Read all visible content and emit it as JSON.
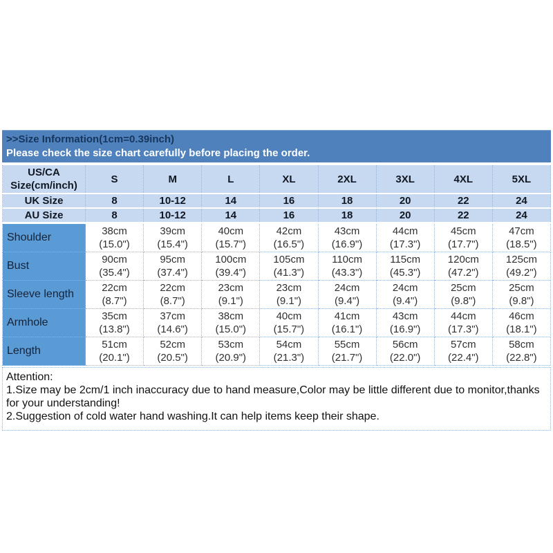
{
  "header": {
    "title": ">>Size Information(1cm=0.39inch)",
    "subtitle": "Please check the size chart carefully before placing the order."
  },
  "colors": {
    "band_bg": "#4f81bd",
    "title_text": "#17365d",
    "subtitle_text": "#ffffff",
    "header_row_bg": "#c6d9f1",
    "label_col_bg": "#5b9bd5",
    "grid_border": "#95b3d7"
  },
  "size_table": {
    "corner_header": [
      "US/CA",
      "Size(cm/inch)"
    ],
    "size_labels": [
      "S",
      "M",
      "L",
      "XL",
      "2XL",
      "3XL",
      "4XL",
      "5XL"
    ],
    "uk_row": {
      "label": "UK Size",
      "values": [
        "8",
        "10-12",
        "14",
        "16",
        "18",
        "20",
        "22",
        "24"
      ]
    },
    "au_row": {
      "label": "AU Size",
      "values": [
        "8",
        "10-12",
        "14",
        "16",
        "18",
        "20",
        "22",
        "24"
      ]
    },
    "measurements": [
      {
        "label": "Shoulder",
        "cm": [
          "38cm",
          "39cm",
          "40cm",
          "42cm",
          "43cm",
          "44cm",
          "45cm",
          "47cm"
        ],
        "inch": [
          "(15.0\")",
          "(15.4\")",
          "(15.7\")",
          "(16.5\")",
          "(16.9\")",
          "(17.3\")",
          "(17.7\")",
          "(18.5\")"
        ]
      },
      {
        "label": "Bust",
        "cm": [
          "90cm",
          "95cm",
          "100cm",
          "105cm",
          "110cm",
          "115cm",
          "120cm",
          "125cm"
        ],
        "inch": [
          "(35.4\")",
          "(37.4\")",
          "(39.4\")",
          "(41.3\")",
          "(43.3\")",
          "(45.3\")",
          "(47.2\")",
          "(49.2\")"
        ]
      },
      {
        "label": "Sleeve length",
        "cm": [
          "22cm",
          "22cm",
          "23cm",
          "23cm",
          "24cm",
          "24cm",
          "25cm",
          "25cm"
        ],
        "inch": [
          "(8.7\")",
          "(8.7\")",
          "(9.1\")",
          "(9.1\")",
          "(9.4\")",
          "(9.4\")",
          "(9.8\")",
          "(9.8\")"
        ]
      },
      {
        "label": "Armhole",
        "cm": [
          "35cm",
          "37cm",
          "38cm",
          "40cm",
          "41cm",
          "43cm",
          "44cm",
          "46cm"
        ],
        "inch": [
          "(13.8\")",
          "(14.6\")",
          "(15.0\")",
          "(15.7\")",
          "(16.1\")",
          "(16.9\")",
          "(17.3\")",
          "(18.1\")"
        ]
      },
      {
        "label": "Length",
        "cm": [
          "51cm",
          "52cm",
          "53cm",
          "54cm",
          "55cm",
          "56cm",
          "57cm",
          "58cm"
        ],
        "inch": [
          "(20.1\")",
          "(20.5\")",
          "(20.9\")",
          "(21.3\")",
          "(21.7\")",
          "(22.0\")",
          "(22.4\")",
          "(22.8\")"
        ]
      }
    ]
  },
  "attention": {
    "heading": "Attention:",
    "lines": [
      "1.Size may be 2cm/1 inch inaccuracy due to hand measure,Color may be little different due to monitor,thanks for your understanding!",
      "2.Suggestion of cold water hand washing.It can help items keep their shape."
    ]
  }
}
